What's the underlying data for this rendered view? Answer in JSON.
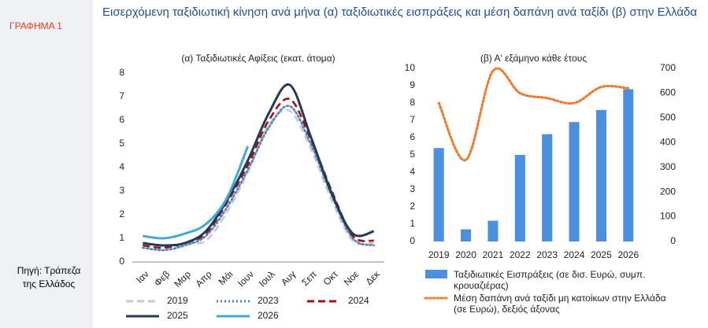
{
  "label": "ΓΡΑΦΗΜΑ 1",
  "title": "Εισερχόμενη ταξιδιωτική κίνηση ανά μήνα (α) ταξιδιωτικές εισπράξεις και μέση δαπάνη ανά ταξίδι (β) στην Ελλάδα",
  "source": "Πηγή: Τράπεζα της Ελλάδος",
  "chart_data": [
    {
      "type": "line",
      "title": "(α) Ταξιδιωτικές Αφίξεις (εκατ. άτομα)",
      "categories": [
        "Ιαν",
        "Φεβ",
        "Μαρ",
        "Απρ",
        "Μάι",
        "Ιουν",
        "Ιουλ",
        "Αυγ",
        "Σεπ",
        "Οκτ",
        "Νοε",
        "Δεκ"
      ],
      "ylim": [
        0,
        8
      ],
      "yticks": [
        0,
        1,
        2,
        3,
        4,
        5,
        6,
        7,
        8
      ],
      "series": [
        {
          "name": "2019",
          "color": "#c8c8c8",
          "style": "dashed",
          "values": [
            0.7,
            0.6,
            0.8,
            0.9,
            2.1,
            3.8,
            5.8,
            6.4,
            4.8,
            2.6,
            0.9,
            0.8
          ]
        },
        {
          "name": "2023",
          "color": "#4f81bd",
          "style": "dotted",
          "values": [
            0.6,
            0.5,
            0.7,
            1.1,
            2.3,
            3.9,
            5.7,
            6.6,
            5.0,
            2.8,
            1.0,
            0.7
          ]
        },
        {
          "name": "2024",
          "color": "#a50f15",
          "style": "dashed",
          "values": [
            0.7,
            0.6,
            0.8,
            1.2,
            2.5,
            4.1,
            6.0,
            6.9,
            5.2,
            3.0,
            1.1,
            0.9
          ]
        },
        {
          "name": "2025",
          "color": "#1f3b57",
          "style": "solid",
          "values": [
            0.8,
            0.7,
            0.8,
            1.3,
            2.6,
            4.3,
            6.3,
            7.5,
            5.3,
            2.9,
            1.2,
            1.3
          ]
        },
        {
          "name": "2026",
          "color": "#41a7d8",
          "style": "solid",
          "values": [
            1.1,
            1.0,
            1.2,
            1.6,
            2.7,
            4.9,
            null,
            null,
            null,
            null,
            null,
            null
          ]
        }
      ]
    },
    {
      "type": "bar",
      "title": "(β) Α' εξάμηνο κάθε έτους",
      "categories": [
        "2019",
        "2020",
        "2021",
        "2022",
        "2023",
        "2024",
        "2025",
        "2026"
      ],
      "ylim": [
        0,
        10
      ],
      "yticks": [
        0,
        1,
        2,
        3,
        4,
        5,
        6,
        7,
        8,
        9,
        10
      ],
      "y2lim": [
        0,
        700
      ],
      "y2ticks": [
        0,
        100,
        200,
        300,
        400,
        500,
        600,
        700
      ],
      "series": [
        {
          "name": "Ταξιδιωτικές Εισπράξεις (σε δισ. Ευρώ, συμπ. κρουαζιέρας)",
          "type": "bar",
          "color": "#4a8fe0",
          "values": [
            5.4,
            0.7,
            1.2,
            5.0,
            6.2,
            6.9,
            7.6,
            8.8
          ]
        },
        {
          "name": "Μέση δαπάνη ανά ταξίδι μη κατοίκων στην Ελλάδα (σε Ευρώ), δεξιός άξονας",
          "type": "line",
          "style": "dotted",
          "axis": "y2",
          "color": "#ee7d31",
          "values": [
            560,
            330,
            690,
            600,
            580,
            560,
            625,
            620
          ]
        }
      ]
    }
  ]
}
